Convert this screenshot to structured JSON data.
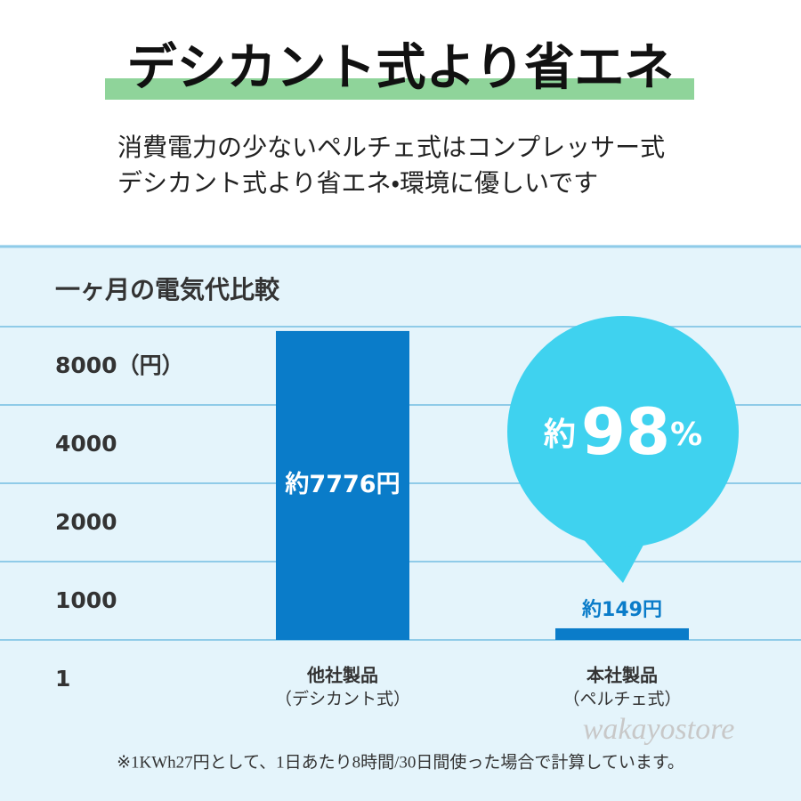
{
  "header": {
    "title": "デシカント式より省エネ",
    "subtitle_lines": [
      "消費電力の少ないペルチェ式はコンプレッサー式",
      "デシカント式より省エネ・環境に優しいです"
    ]
  },
  "chart_data": {
    "type": "bar",
    "title": "一ヶ月の電気代比較",
    "categories": [
      "他社製品",
      "本社製品"
    ],
    "category_notes": [
      "（デシカント式）",
      "（ペルチェ式）"
    ],
    "values": [
      7776,
      149
    ],
    "value_labels": [
      "約7776円",
      "約149円"
    ],
    "color": "#0a7cc9",
    "ylim": [
      1,
      8000
    ],
    "yticks": [
      {
        "value": 8000,
        "label": "8000（円）"
      },
      4000,
      2000,
      1000,
      1
    ],
    "grid": true,
    "annotation": {
      "prefix": "約",
      "number": "98",
      "suffix": "%"
    }
  },
  "footnote": "※1KWh27円として、1日あたり8時間/30日間使った場合で計算しています。",
  "watermark": "wakayostore"
}
